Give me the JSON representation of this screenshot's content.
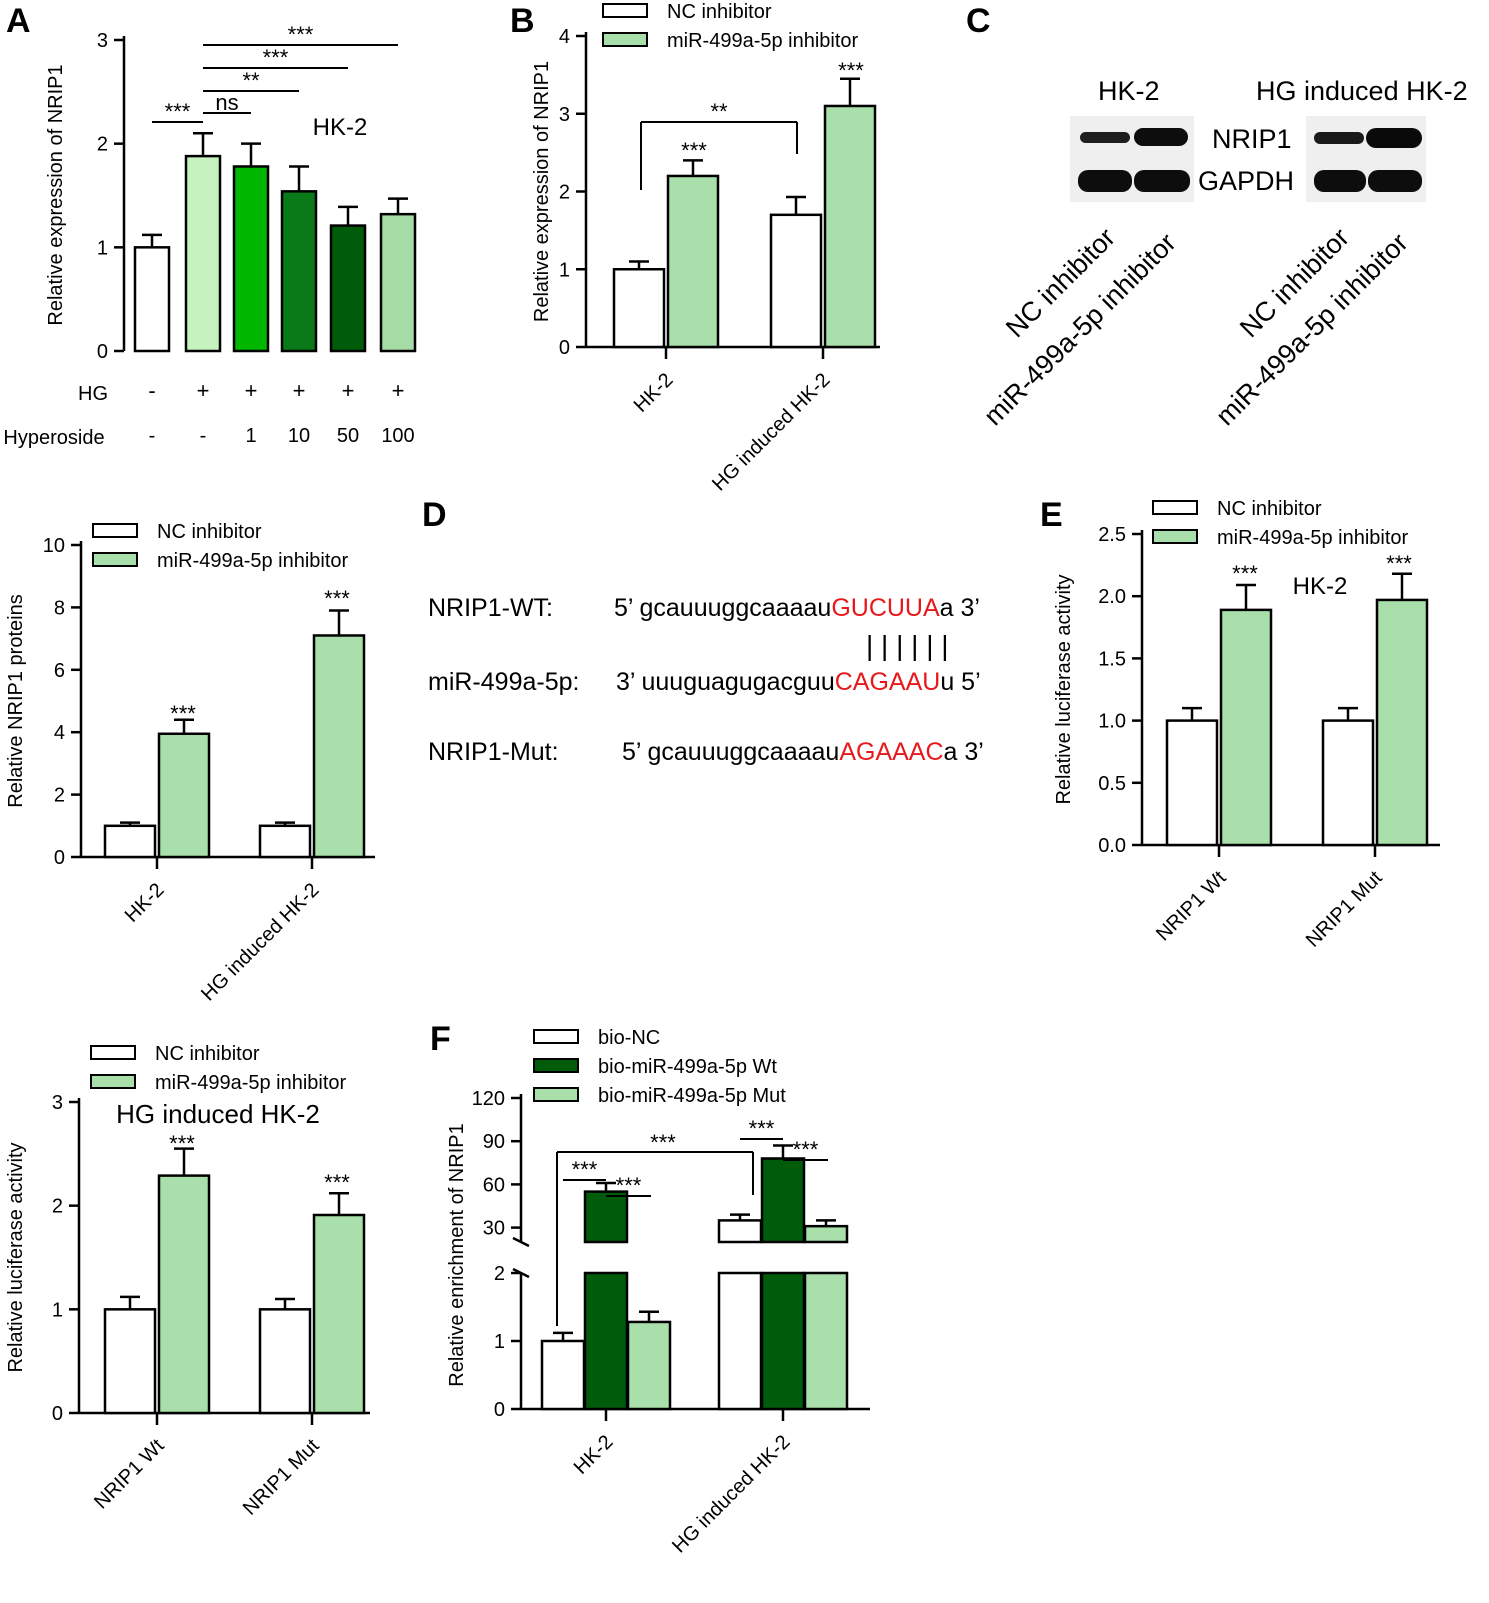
{
  "colors": {
    "white": "#ffffff",
    "light_green": "#c6f2c0",
    "mid_green": "#00b800",
    "green": "#0f9a1c",
    "dark_green": "#0a7a18",
    "darker_green": "#005c0a",
    "pale_green": "#a6dca6",
    "inhibitor_green": "#a9dfab",
    "red": "#e8191c"
  },
  "panels": {
    "A": "A",
    "B": "B",
    "C": "C",
    "D": "D",
    "E": "E",
    "F": "F"
  },
  "blot": {
    "title_left": "HK-2",
    "title_right": "HG induced HK-2",
    "band_nrip1": "NRIP1",
    "band_gapdh": "GAPDH",
    "lane_nc": "NC inhibitor",
    "lane_mir": "miR-499a-5p inhibitor"
  },
  "sequences": {
    "wt_label": "NRIP1-WT:",
    "wt_prefix": "5’ gcauuuggcaaaau",
    "wt_red": "GUCUUA",
    "wt_suffix": "a 3’",
    "pairing": "| | | | | |",
    "mir_label": "miR-499a-5p:",
    "mir_prefix": "3’ uuuguagugacguu",
    "mir_red": "CAGAAU",
    "mir_suffix": "u 5’",
    "mut_label": "NRIP1-Mut:",
    "mut_prefix": "5’ gcauuuggcaaaau",
    "mut_red": "AGAAAC",
    "mut_suffix": "a 3’"
  },
  "chart_data": [
    {
      "id": "A",
      "type": "bar",
      "ylabel": "Relative expression of NRIP1",
      "ylim": [
        0,
        3
      ],
      "yticks": [
        "0",
        "1",
        "2",
        "3"
      ],
      "values": [
        1.0,
        1.88,
        1.78,
        1.54,
        1.21,
        1.32
      ],
      "errors": [
        0.12,
        0.22,
        0.22,
        0.24,
        0.18,
        0.15
      ],
      "colors": [
        "#ffffff",
        "#c6f2c0",
        "#00b800",
        "#0a7a18",
        "#005c0a",
        "#a6dca6"
      ],
      "annotation": "HK-2",
      "row_labels": [
        "HG",
        "Hyperoside"
      ],
      "row_values": [
        [
          "-",
          "+",
          "+",
          "+",
          "+",
          "+"
        ],
        [
          "-",
          "-",
          "1",
          "10",
          "50",
          "100"
        ]
      ],
      "significance": [
        "***",
        "ns",
        "**",
        "***",
        "***"
      ]
    },
    {
      "id": "B",
      "type": "bar",
      "ylabel": "Relative expression of NRIP1",
      "ylim": [
        0,
        4
      ],
      "yticks": [
        "0",
        "1",
        "2",
        "3",
        "4"
      ],
      "categories": [
        "HK-2",
        "HG induced HK-2"
      ],
      "series": [
        {
          "name": "NC inhibitor",
          "values": [
            1.0,
            1.7
          ],
          "errors": [
            0.1,
            0.23
          ]
        },
        {
          "name": "miR-499a-5p inhibitor",
          "values": [
            2.2,
            3.1
          ],
          "errors": [
            0.2,
            0.35
          ]
        }
      ],
      "significance": [
        "***",
        "***",
        "**"
      ]
    },
    {
      "id": "C2",
      "type": "bar",
      "ylabel": "Relative NRIP1 proteins",
      "ylim": [
        0,
        10
      ],
      "yticks": [
        "0",
        "2",
        "4",
        "6",
        "8",
        "10"
      ],
      "categories": [
        "HK-2",
        "HG induced HK-2"
      ],
      "series": [
        {
          "name": "NC inhibitor",
          "values": [
            1.0,
            1.0
          ],
          "errors": [
            0.1,
            0.1
          ]
        },
        {
          "name": "miR-499a-5p inhibitor",
          "values": [
            3.95,
            7.1
          ],
          "errors": [
            0.45,
            0.8
          ]
        }
      ],
      "significance": [
        "***",
        "***"
      ]
    },
    {
      "id": "E",
      "type": "bar",
      "ylabel": "Relative luciferase activity",
      "ylim": [
        0,
        2.5
      ],
      "yticks": [
        "0.0",
        "0.5",
        "1.0",
        "1.5",
        "2.0",
        "2.5"
      ],
      "categories": [
        "NRIP1 Wt",
        "NRIP1 Mut"
      ],
      "series": [
        {
          "name": "NC inhibitor",
          "values": [
            1.0,
            1.0
          ],
          "errors": [
            0.1,
            0.1
          ]
        },
        {
          "name": "miR-499a-5p inhibitor",
          "values": [
            1.89,
            1.97
          ],
          "errors": [
            0.2,
            0.21
          ]
        }
      ],
      "annotation": "HK-2",
      "significance": [
        "***",
        "***"
      ]
    },
    {
      "id": "E2",
      "type": "bar",
      "ylabel": "Relative luciferase activity",
      "ylim": [
        0,
        3
      ],
      "yticks": [
        "0",
        "1",
        "2",
        "3"
      ],
      "categories": [
        "NRIP1 Wt",
        "NRIP1 Mut"
      ],
      "series": [
        {
          "name": "NC inhibitor",
          "values": [
            1.0,
            1.0
          ],
          "errors": [
            0.12,
            0.1
          ]
        },
        {
          "name": "miR-499a-5p inhibitor",
          "values": [
            2.29,
            1.91
          ],
          "errors": [
            0.26,
            0.21
          ]
        }
      ],
      "annotation": "HG induced HK-2",
      "significance": [
        "***",
        "***"
      ]
    },
    {
      "id": "F",
      "type": "bar",
      "ylabel": "Relative enrichment of NRIP1",
      "y_broken_axis": true,
      "ylim_lower": [
        0,
        2
      ],
      "ylim_upper": [
        20,
        120
      ],
      "yticks_lower": [
        "0",
        "1",
        "2"
      ],
      "yticks_upper": [
        "30",
        "60",
        "90",
        "120"
      ],
      "categories": [
        "HK-2",
        "HG induced HK-2"
      ],
      "series": [
        {
          "name": "bio-NC",
          "values": [
            1.0,
            35
          ],
          "errors": [
            0.12,
            4
          ]
        },
        {
          "name": "bio-miR-499a-5p Wt",
          "values": [
            55,
            78
          ],
          "errors": [
            6,
            9
          ]
        },
        {
          "name": "bio-miR-499a-5p Mut",
          "values": [
            1.28,
            31
          ],
          "errors": [
            0.15,
            4
          ]
        }
      ],
      "significance": [
        "***",
        "***",
        "***",
        "***",
        "***"
      ]
    }
  ]
}
